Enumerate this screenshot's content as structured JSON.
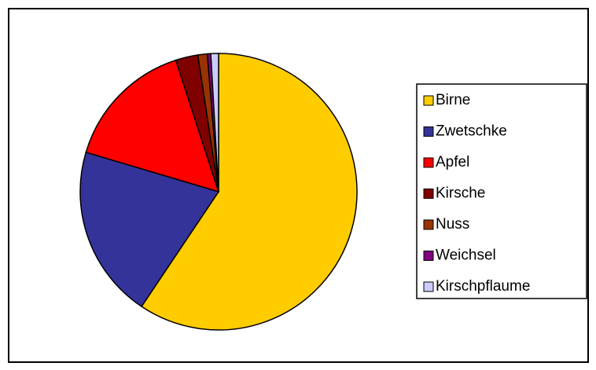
{
  "chart_data": {
    "type": "pie",
    "categories": [
      "Birne",
      "Zwetschke",
      "Apfel",
      "Kirsche",
      "Nuss",
      "Weichsel",
      "Kirschpflaume"
    ],
    "values": [
      59.4,
      20.2,
      15.4,
      2.6,
      1.1,
      0.4,
      0.9
    ],
    "colors": [
      "#FFCC00",
      "#333399",
      "#FF0000",
      "#800000",
      "#993300",
      "#800080",
      "#CCCCFF"
    ],
    "legend": "right"
  }
}
